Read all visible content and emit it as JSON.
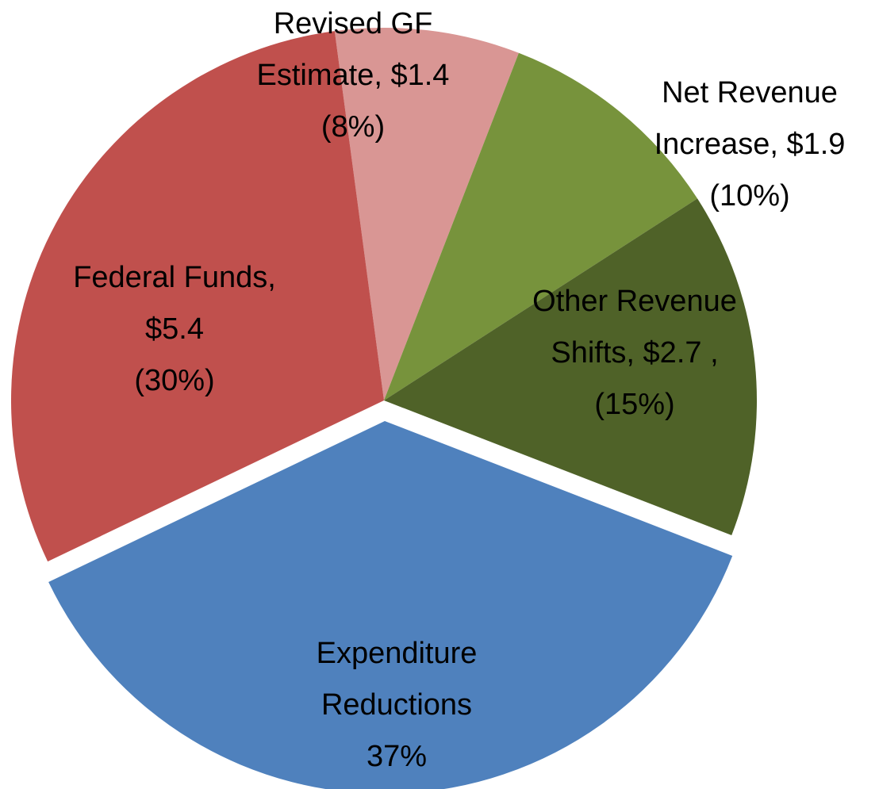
{
  "chart_data": {
    "type": "pie",
    "categories": [
      "Revised GF Estimate,",
      "Net Revenue Increase,",
      "Other Revenue Shifts,",
      "Expenditure Reductions",
      "Federal Funds,"
    ],
    "values": [
      8,
      10,
      15,
      37,
      30
    ],
    "value_labels": [
      "(8%)",
      "(10%)",
      "(15%)",
      "37%",
      "(30%)"
    ],
    "amounts": [
      1.4,
      1.9,
      2.7,
      null,
      5.4
    ],
    "amount_labels": [
      "$1.4",
      "$1.9",
      "$2.7 ,",
      null,
      "$5.4"
    ],
    "colors": [
      "#d99694",
      "#77933c",
      "#4f6228",
      "#4f81bd",
      "#c0504d"
    ],
    "exploded": [
      false,
      false,
      false,
      true,
      false
    ]
  }
}
